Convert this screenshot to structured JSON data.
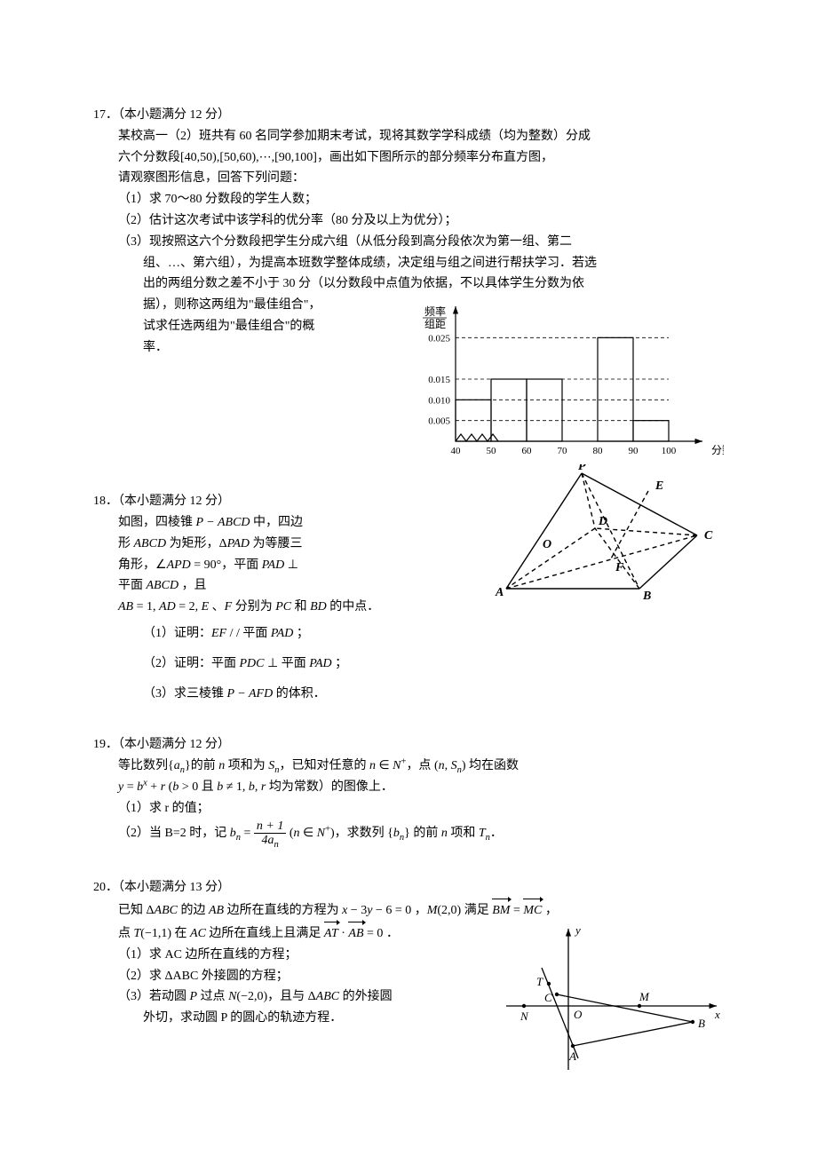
{
  "q17": {
    "header": "17．（本小题满分 12 分）",
    "p1a": "某校高一（2）班共有 60 名同学参加期末考试，现将其数学学科成绩（均为整数）分成",
    "p1b_pre": "六个分数段",
    "p1b_intervals": "[40,50),[50,60),⋯,[90,100]",
    "p1b_post": "，画出如下图所示的部分频率分布直方图，",
    "p2": "请观察图形信息，回答下列问题：",
    "s1": "（1）求 70～80 分数段的学生人数；",
    "s2": "（2）估计这次考试中该学科的优分率（80 分及以上为优分）；",
    "s3a": "（3）现按照这六个分数段把学生分成六组（从低分段到高分段依次为第一组、第二",
    "s3b": "组、…、第六组），为提高本班数学整体成绩，决定组与组之间进行帮扶学习．若选",
    "s3c": "出的两组分数之差不小于 30 分（以分数段中点值为依据，不以具体学生分数为依",
    "s3d": "据），则称这两组为\"最佳组合\"，",
    "s3e": "试求任选两组为\"最佳组合\"的概",
    "s3f": "率．",
    "histogram": {
      "ylabel1": "频率",
      "ylabel2": "组距",
      "xlabel": "分数",
      "yticks": [
        0.005,
        0.01,
        0.015,
        0.025
      ],
      "xticks": [
        40,
        50,
        60,
        70,
        80,
        90,
        100
      ],
      "bars": [
        {
          "x0": 40,
          "x1": 50,
          "h": 0.01,
          "zigzag": false
        },
        {
          "x0": 50,
          "x1": 60,
          "h": 0.015,
          "zigzag": false
        },
        {
          "x0": 60,
          "x1": 70,
          "h": 0.015,
          "zigzag": false
        },
        {
          "x0": 80,
          "x1": 90,
          "h": 0.025,
          "zigzag": false
        },
        {
          "x0": 90,
          "x1": 100,
          "h": 0.005,
          "zigzag": true
        }
      ],
      "axis_color": "#000",
      "grid_dash": "4,3",
      "line_w": 1.2,
      "bg": "#fff",
      "font_size": 11
    }
  },
  "q18": {
    "header": "18．（本小题满分 12 分）",
    "p1": "如图，四棱锥 P − ABCD 中，四边",
    "p2": "形 ABCD 为矩形，ΔPAD 为等腰三",
    "p3": "角形，∠APD = 90°，平面 PAD ⊥ ",
    "p4": "平面 ABCD ，且",
    "p5": "AB = 1, AD = 2, E 、 F 分别为 PC 和 BD 的中点．",
    "s1": "（1）证明：EF / / 平面 PAD ；",
    "s2": "（2）证明：平面 PDC ⊥ 平面 PAD ；",
    "s3": "（3）求三棱锥 P − AFD 的体积．",
    "figure": {
      "labels": [
        "A",
        "B",
        "C",
        "D",
        "E",
        "F",
        "O",
        "P"
      ],
      "line_w": 1.4,
      "color": "#000",
      "dash": "5,4",
      "pts": {
        "A": [
          15,
          140
        ],
        "B": [
          165,
          140
        ],
        "C": [
          230,
          80
        ],
        "D": [
          115,
          72
        ],
        "O": [
          70,
          88
        ],
        "E": [
          175,
          30
        ],
        "F": [
          132,
          108
        ],
        "P": [
          100,
          10
        ]
      }
    }
  },
  "q19": {
    "header": "19．（本小题满分 12 分）",
    "p1_a": "等比数列{",
    "p1_an": "a",
    "p1_b": "}的前",
    "p1_n": "n",
    "p1_c": "项和为",
    "p1_Sn": "S",
    "p1_d": "，已知对任意的",
    "p1_nin": "n ∈ N",
    "p1_e": "，点",
    "p1_pt": "(n, S",
    "p1_f": ")均在函数",
    "p2_a": "y = b",
    "p2_b": " + r (b > 0 且 b ≠ 1, b, r 均为常数）的图像上．",
    "s1": "（1）求 r 的值；",
    "s2a": "（2）当 B=2 时，记",
    "s2_bn": "b",
    "s2_eq": " = ",
    "frac_num": "n + 1",
    "frac_den": "4a",
    "s2_cond": "(n ∈ N",
    "s2_post": ")，求数列 {",
    "s2_bn2": "b",
    "s2_close": "} 的前",
    "s2_n": "n",
    "s2_end": "项和",
    "s2_Tn": "T",
    "s2_dot": "．"
  },
  "q20": {
    "header": "20．（本小题满分 13 分）",
    "p1a": "已知 ΔABC 的边 AB 边所在直线的方程为",
    "p1_eq": "x − 3y − 6 = 0",
    "p1b": "，",
    "p1_M": "M(2,0)",
    "p1c": "满足",
    "p1_v1": "BM",
    "p1_veq": " = ",
    "p1_v2": "MC",
    "p1d": "，",
    "p2a": "点",
    "p2_T": "T(−1,1)",
    "p2b": "在",
    "p2_AC": "AC",
    "p2c": "边所在直线上且满足",
    "p2_v1": "AT",
    "p2_dot": " · ",
    "p2_v2": "AB",
    "p2_eq0": " = 0",
    "p2d": "．",
    "s1": "（1）求 AC 边所在直线的方程；",
    "s2": "（2）求 ΔABC 外接圆的方程；",
    "s3a": "（3）若动圆 P 过点 N(−2,0)，且与 ΔABC 的外接圆",
    "s3b": "外切，求动圆 P 的圆心的轨迹方程．",
    "figure": {
      "color": "#000",
      "line_w": 1.3,
      "axes": {
        "xr": [
          -60,
          160
        ],
        "yr": [
          -70,
          85
        ]
      },
      "pts": {
        "N": [
          -50,
          0
        ],
        "T": [
          -22,
          25
        ],
        "C": [
          -13,
          13
        ],
        "O": [
          0,
          0
        ],
        "A": [
          5,
          -45
        ],
        "M": [
          80,
          0
        ],
        "B": [
          140,
          -18
        ]
      },
      "xlabel": "x",
      "ylabel": "y",
      "labels": {
        "N": "N",
        "T": "T",
        "C": "C",
        "O": "O",
        "A": "A",
        "M": "M",
        "B": "B"
      }
    }
  }
}
